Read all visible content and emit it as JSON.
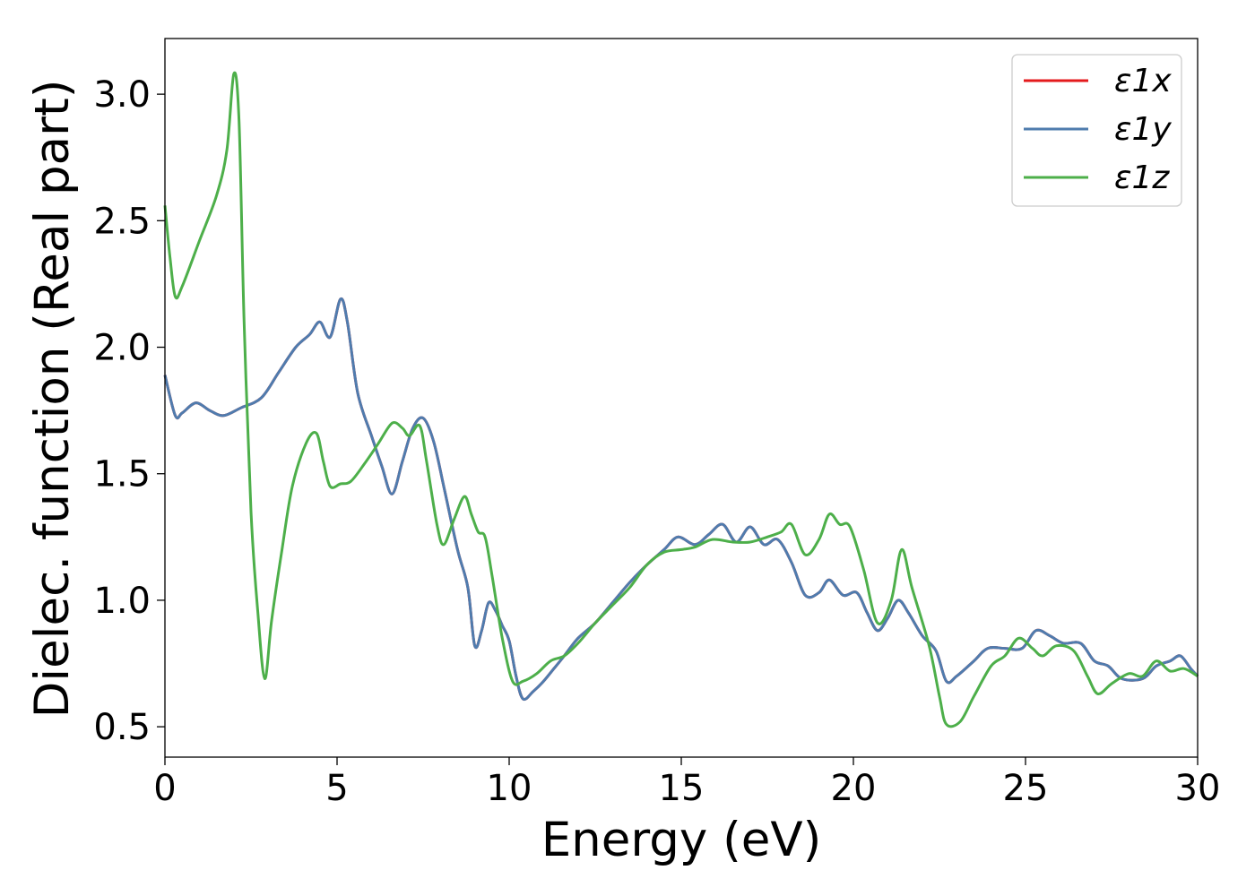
{
  "chart_data": {
    "type": "line",
    "xlabel": "Energy (eV)",
    "ylabel": "Dielec. function (Real part)",
    "xlim": [
      0,
      30
    ],
    "ylim": [
      0.38,
      3.22
    ],
    "xticks": [
      0,
      5,
      10,
      15,
      20,
      25,
      30
    ],
    "xtick_labels": [
      "0",
      "5",
      "10",
      "15",
      "20",
      "25",
      "30"
    ],
    "yticks": [
      0.5,
      1.0,
      1.5,
      2.0,
      2.5,
      3.0
    ],
    "ytick_labels": [
      "0.5",
      "1.0",
      "1.5",
      "2.0",
      "2.5",
      "3.0"
    ],
    "grid": false,
    "legend_position": "top-right",
    "series": [
      {
        "name": "ε1x",
        "color": "#e41a1c",
        "points": [
          [
            0,
            1.89
          ],
          [
            0.3,
            1.73
          ],
          [
            0.5,
            1.74
          ],
          [
            0.9,
            1.78
          ],
          [
            1.3,
            1.75
          ],
          [
            1.7,
            1.73
          ],
          [
            2.2,
            1.76
          ],
          [
            2.8,
            1.8
          ],
          [
            3.3,
            1.9
          ],
          [
            3.8,
            2.0
          ],
          [
            4.2,
            2.05
          ],
          [
            4.5,
            2.1
          ],
          [
            4.8,
            2.04
          ],
          [
            5.1,
            2.19
          ],
          [
            5.3,
            2.1
          ],
          [
            5.6,
            1.82
          ],
          [
            6.0,
            1.65
          ],
          [
            6.3,
            1.53
          ],
          [
            6.6,
            1.42
          ],
          [
            6.9,
            1.55
          ],
          [
            7.2,
            1.68
          ],
          [
            7.5,
            1.72
          ],
          [
            7.8,
            1.63
          ],
          [
            8.1,
            1.45
          ],
          [
            8.5,
            1.2
          ],
          [
            8.8,
            1.05
          ],
          [
            9.0,
            0.82
          ],
          [
            9.2,
            0.88
          ],
          [
            9.4,
            0.99
          ],
          [
            9.6,
            0.96
          ],
          [
            9.8,
            0.9
          ],
          [
            10.0,
            0.84
          ],
          [
            10.2,
            0.7
          ],
          [
            10.4,
            0.61
          ],
          [
            10.7,
            0.64
          ],
          [
            11.0,
            0.68
          ],
          [
            11.3,
            0.73
          ],
          [
            11.6,
            0.78
          ],
          [
            12.0,
            0.85
          ],
          [
            12.5,
            0.91
          ],
          [
            13.0,
            0.99
          ],
          [
            13.5,
            1.07
          ],
          [
            14.0,
            1.14
          ],
          [
            14.5,
            1.2
          ],
          [
            14.9,
            1.25
          ],
          [
            15.4,
            1.22
          ],
          [
            15.8,
            1.26
          ],
          [
            16.2,
            1.3
          ],
          [
            16.6,
            1.23
          ],
          [
            17.0,
            1.29
          ],
          [
            17.4,
            1.22
          ],
          [
            17.8,
            1.24
          ],
          [
            18.2,
            1.15
          ],
          [
            18.6,
            1.02
          ],
          [
            19.0,
            1.03
          ],
          [
            19.3,
            1.08
          ],
          [
            19.7,
            1.02
          ],
          [
            20.1,
            1.03
          ],
          [
            20.4,
            0.95
          ],
          [
            20.7,
            0.88
          ],
          [
            21.0,
            0.93
          ],
          [
            21.3,
            1.0
          ],
          [
            21.6,
            0.95
          ],
          [
            22.0,
            0.86
          ],
          [
            22.4,
            0.8
          ],
          [
            22.7,
            0.68
          ],
          [
            23.0,
            0.7
          ],
          [
            23.5,
            0.76
          ],
          [
            23.9,
            0.81
          ],
          [
            24.4,
            0.81
          ],
          [
            24.9,
            0.81
          ],
          [
            25.3,
            0.88
          ],
          [
            25.7,
            0.86
          ],
          [
            26.1,
            0.83
          ],
          [
            26.6,
            0.83
          ],
          [
            27.0,
            0.76
          ],
          [
            27.4,
            0.74
          ],
          [
            27.8,
            0.69
          ],
          [
            28.4,
            0.69
          ],
          [
            28.8,
            0.74
          ],
          [
            29.2,
            0.76
          ],
          [
            29.5,
            0.78
          ],
          [
            29.8,
            0.73
          ],
          [
            30,
            0.7
          ]
        ]
      },
      {
        "name": "ε1y",
        "color": "#4f7cae",
        "points": [
          [
            0,
            1.89
          ],
          [
            0.3,
            1.73
          ],
          [
            0.5,
            1.74
          ],
          [
            0.9,
            1.78
          ],
          [
            1.3,
            1.75
          ],
          [
            1.7,
            1.73
          ],
          [
            2.2,
            1.76
          ],
          [
            2.8,
            1.8
          ],
          [
            3.3,
            1.9
          ],
          [
            3.8,
            2.0
          ],
          [
            4.2,
            2.05
          ],
          [
            4.5,
            2.1
          ],
          [
            4.8,
            2.04
          ],
          [
            5.1,
            2.19
          ],
          [
            5.3,
            2.1
          ],
          [
            5.6,
            1.82
          ],
          [
            6.0,
            1.65
          ],
          [
            6.3,
            1.53
          ],
          [
            6.6,
            1.42
          ],
          [
            6.9,
            1.55
          ],
          [
            7.2,
            1.68
          ],
          [
            7.5,
            1.72
          ],
          [
            7.8,
            1.63
          ],
          [
            8.1,
            1.45
          ],
          [
            8.5,
            1.2
          ],
          [
            8.8,
            1.05
          ],
          [
            9.0,
            0.82
          ],
          [
            9.2,
            0.88
          ],
          [
            9.4,
            0.99
          ],
          [
            9.6,
            0.96
          ],
          [
            9.8,
            0.9
          ],
          [
            10.0,
            0.84
          ],
          [
            10.2,
            0.7
          ],
          [
            10.4,
            0.61
          ],
          [
            10.7,
            0.64
          ],
          [
            11.0,
            0.68
          ],
          [
            11.3,
            0.73
          ],
          [
            11.6,
            0.78
          ],
          [
            12.0,
            0.85
          ],
          [
            12.5,
            0.91
          ],
          [
            13.0,
            0.99
          ],
          [
            13.5,
            1.07
          ],
          [
            14.0,
            1.14
          ],
          [
            14.5,
            1.2
          ],
          [
            14.9,
            1.25
          ],
          [
            15.4,
            1.22
          ],
          [
            15.8,
            1.26
          ],
          [
            16.2,
            1.3
          ],
          [
            16.6,
            1.23
          ],
          [
            17.0,
            1.29
          ],
          [
            17.4,
            1.22
          ],
          [
            17.8,
            1.24
          ],
          [
            18.2,
            1.15
          ],
          [
            18.6,
            1.02
          ],
          [
            19.0,
            1.03
          ],
          [
            19.3,
            1.08
          ],
          [
            19.7,
            1.02
          ],
          [
            20.1,
            1.03
          ],
          [
            20.4,
            0.95
          ],
          [
            20.7,
            0.88
          ],
          [
            21.0,
            0.93
          ],
          [
            21.3,
            1.0
          ],
          [
            21.6,
            0.95
          ],
          [
            22.0,
            0.86
          ],
          [
            22.4,
            0.8
          ],
          [
            22.7,
            0.68
          ],
          [
            23.0,
            0.7
          ],
          [
            23.5,
            0.76
          ],
          [
            23.9,
            0.81
          ],
          [
            24.4,
            0.81
          ],
          [
            24.9,
            0.81
          ],
          [
            25.3,
            0.88
          ],
          [
            25.7,
            0.86
          ],
          [
            26.1,
            0.83
          ],
          [
            26.6,
            0.83
          ],
          [
            27.0,
            0.76
          ],
          [
            27.4,
            0.74
          ],
          [
            27.8,
            0.69
          ],
          [
            28.4,
            0.69
          ],
          [
            28.8,
            0.74
          ],
          [
            29.2,
            0.76
          ],
          [
            29.5,
            0.78
          ],
          [
            29.8,
            0.73
          ],
          [
            30,
            0.7
          ]
        ]
      },
      {
        "name": "ε1z",
        "color": "#4daf4a",
        "points": [
          [
            0,
            2.56
          ],
          [
            0.15,
            2.35
          ],
          [
            0.3,
            2.2
          ],
          [
            0.5,
            2.24
          ],
          [
            1.0,
            2.42
          ],
          [
            1.5,
            2.6
          ],
          [
            1.8,
            2.78
          ],
          [
            2.0,
            3.08
          ],
          [
            2.15,
            2.9
          ],
          [
            2.3,
            2.1
          ],
          [
            2.5,
            1.35
          ],
          [
            2.7,
            0.95
          ],
          [
            2.9,
            0.69
          ],
          [
            3.1,
            0.92
          ],
          [
            3.4,
            1.2
          ],
          [
            3.7,
            1.45
          ],
          [
            4.1,
            1.62
          ],
          [
            4.4,
            1.66
          ],
          [
            4.6,
            1.55
          ],
          [
            4.8,
            1.45
          ],
          [
            5.1,
            1.46
          ],
          [
            5.4,
            1.47
          ],
          [
            5.8,
            1.54
          ],
          [
            6.2,
            1.62
          ],
          [
            6.6,
            1.7
          ],
          [
            6.9,
            1.68
          ],
          [
            7.1,
            1.65
          ],
          [
            7.4,
            1.69
          ],
          [
            7.6,
            1.55
          ],
          [
            7.9,
            1.3
          ],
          [
            8.1,
            1.22
          ],
          [
            8.4,
            1.32
          ],
          [
            8.7,
            1.41
          ],
          [
            8.9,
            1.34
          ],
          [
            9.1,
            1.27
          ],
          [
            9.3,
            1.25
          ],
          [
            9.5,
            1.1
          ],
          [
            9.8,
            0.85
          ],
          [
            10.1,
            0.68
          ],
          [
            10.4,
            0.68
          ],
          [
            10.8,
            0.71
          ],
          [
            11.2,
            0.76
          ],
          [
            11.6,
            0.78
          ],
          [
            12.0,
            0.83
          ],
          [
            12.5,
            0.91
          ],
          [
            13.0,
            0.98
          ],
          [
            13.5,
            1.05
          ],
          [
            14.0,
            1.14
          ],
          [
            14.5,
            1.19
          ],
          [
            15.0,
            1.2
          ],
          [
            15.4,
            1.21
          ],
          [
            15.9,
            1.24
          ],
          [
            16.5,
            1.23
          ],
          [
            17.0,
            1.23
          ],
          [
            17.5,
            1.25
          ],
          [
            17.9,
            1.27
          ],
          [
            18.2,
            1.3
          ],
          [
            18.6,
            1.18
          ],
          [
            19.0,
            1.24
          ],
          [
            19.3,
            1.34
          ],
          [
            19.6,
            1.3
          ],
          [
            19.9,
            1.29
          ],
          [
            20.3,
            1.12
          ],
          [
            20.7,
            0.91
          ],
          [
            21.1,
            1.0
          ],
          [
            21.4,
            1.2
          ],
          [
            21.7,
            1.05
          ],
          [
            22.2,
            0.82
          ],
          [
            22.5,
            0.62
          ],
          [
            22.7,
            0.51
          ],
          [
            23.1,
            0.52
          ],
          [
            23.5,
            0.62
          ],
          [
            24.0,
            0.74
          ],
          [
            24.4,
            0.78
          ],
          [
            24.8,
            0.85
          ],
          [
            25.2,
            0.81
          ],
          [
            25.5,
            0.78
          ],
          [
            25.9,
            0.82
          ],
          [
            26.4,
            0.8
          ],
          [
            26.8,
            0.7
          ],
          [
            27.1,
            0.63
          ],
          [
            27.5,
            0.67
          ],
          [
            28.0,
            0.71
          ],
          [
            28.4,
            0.7
          ],
          [
            28.8,
            0.76
          ],
          [
            29.2,
            0.72
          ],
          [
            29.6,
            0.73
          ],
          [
            30,
            0.7
          ]
        ]
      }
    ]
  }
}
